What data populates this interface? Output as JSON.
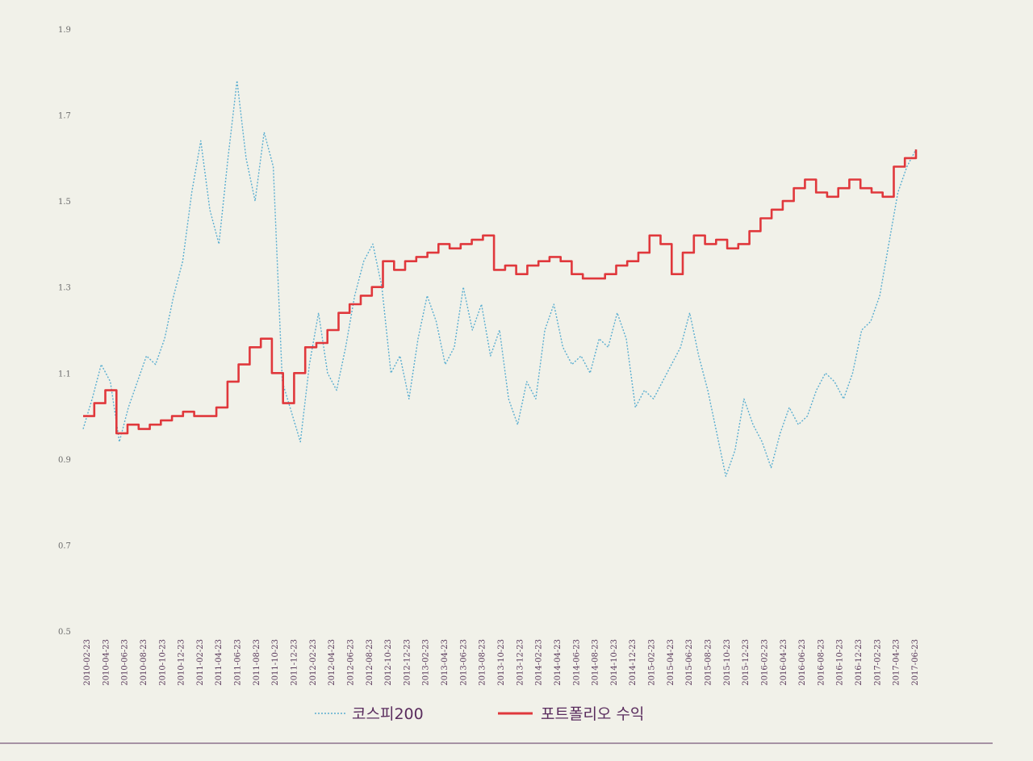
{
  "chart_data": {
    "type": "line",
    "title": "",
    "xlabel": "",
    "ylabel": "",
    "ylim": [
      0.5,
      1.9
    ],
    "y_ticks": [
      "0.5",
      "0.7",
      "0.9",
      "1.1",
      "1.3",
      "1.5",
      "1.7",
      "1.9"
    ],
    "x_tick_labels": [
      "2010-02-23",
      "2010-04-23",
      "2010-06-23",
      "2010-08-23",
      "2010-10-23",
      "2010-12-23",
      "2011-02-23",
      "2011-04-23",
      "2011-06-23",
      "2011-08-23",
      "2011-10-23",
      "2011-12-23",
      "2012-02-23",
      "2012-04-23",
      "2012-06-23",
      "2012-08-23",
      "2012-10-23",
      "2012-12-23",
      "2013-02-23",
      "2013-04-23",
      "2013-06-23",
      "2013-08-23",
      "2013-10-23",
      "2013-12-23",
      "2014-02-23",
      "2014-04-23",
      "2014-06-23",
      "2014-08-23",
      "2014-10-23",
      "2014-12-23",
      "2015-02-23",
      "2015-04-23",
      "2015-06-23",
      "2015-08-23",
      "2015-10-23",
      "2015-12-23",
      "2016-02-23",
      "2016-04-23",
      "2016-06-23",
      "2016-08-23",
      "2016-10-23",
      "2016-12-23",
      "2017-02-23",
      "2017-04-23",
      "2017-06-23"
    ],
    "grid": false,
    "legend_position": "bottom-center",
    "series": [
      {
        "name": "코스피200",
        "style": "dotted",
        "color": "#5aaed0",
        "values": [
          0.97,
          1.04,
          1.12,
          1.08,
          0.94,
          1.02,
          1.08,
          1.14,
          1.12,
          1.18,
          1.28,
          1.36,
          1.52,
          1.64,
          1.48,
          1.4,
          1.6,
          1.78,
          1.6,
          1.5,
          1.66,
          1.58,
          1.08,
          1.01,
          0.94,
          1.12,
          1.24,
          1.1,
          1.06,
          1.16,
          1.28,
          1.36,
          1.4,
          1.3,
          1.1,
          1.14,
          1.04,
          1.18,
          1.28,
          1.22,
          1.12,
          1.16,
          1.3,
          1.2,
          1.26,
          1.14,
          1.2,
          1.04,
          0.98,
          1.08,
          1.04,
          1.2,
          1.26,
          1.16,
          1.12,
          1.14,
          1.1,
          1.18,
          1.16,
          1.24,
          1.18,
          1.02,
          1.06,
          1.04,
          1.08,
          1.12,
          1.16,
          1.24,
          1.14,
          1.06,
          0.96,
          0.86,
          0.92,
          1.04,
          0.98,
          0.94,
          0.88,
          0.96,
          1.02,
          0.98,
          1.0,
          1.06,
          1.1,
          1.08,
          1.04,
          1.1,
          1.2,
          1.22,
          1.28,
          1.4,
          1.52,
          1.58,
          1.62
        ]
      },
      {
        "name": "포트폴리오 수익",
        "style": "solid",
        "color": "#e0383c",
        "values": [
          1.0,
          1.03,
          1.06,
          0.96,
          0.98,
          0.97,
          0.98,
          0.99,
          1.0,
          1.01,
          1.0,
          1.0,
          1.02,
          1.08,
          1.12,
          1.16,
          1.18,
          1.1,
          1.03,
          1.1,
          1.16,
          1.17,
          1.2,
          1.24,
          1.26,
          1.28,
          1.3,
          1.36,
          1.34,
          1.36,
          1.37,
          1.38,
          1.4,
          1.39,
          1.4,
          1.41,
          1.42,
          1.34,
          1.35,
          1.33,
          1.35,
          1.36,
          1.37,
          1.36,
          1.33,
          1.32,
          1.32,
          1.33,
          1.35,
          1.36,
          1.38,
          1.42,
          1.4,
          1.33,
          1.38,
          1.42,
          1.4,
          1.41,
          1.39,
          1.4,
          1.43,
          1.46,
          1.48,
          1.5,
          1.53,
          1.55,
          1.52,
          1.51,
          1.53,
          1.55,
          1.53,
          1.52,
          1.51,
          1.58,
          1.6,
          1.62
        ]
      }
    ]
  }
}
